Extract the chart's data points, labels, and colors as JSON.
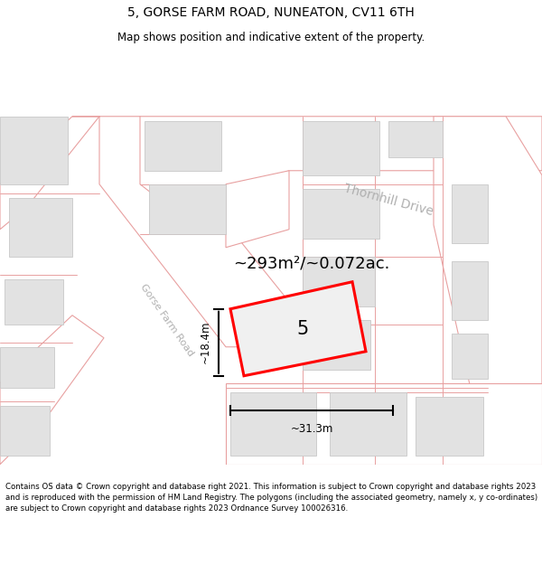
{
  "title": "5, GORSE FARM ROAD, NUNEATON, CV11 6TH",
  "subtitle": "Map shows position and indicative extent of the property.",
  "footer": "Contains OS data © Crown copyright and database right 2021. This information is subject to Crown copyright and database rights 2023 and is reproduced with the permission of HM Land Registry. The polygons (including the associated geometry, namely x, y co-ordinates) are subject to Crown copyright and database rights 2023 Ordnance Survey 100026316.",
  "map_bg": "#f7f7f7",
  "road_fill": "#ffffff",
  "road_stroke": "#e8a0a0",
  "building_fill": "#e2e2e2",
  "building_stroke": "#c8c8c8",
  "highlight_stroke": "#ff0000",
  "highlight_fill": "#f0f0f0",
  "area_label": "~293m²/~0.072ac.",
  "plot_label": "5",
  "dim_width": "~31.3m",
  "dim_height": "~18.4m",
  "road_label_1": "Gorse Farm Road",
  "road_label_2": "Thornhill Drive",
  "title_fontsize": 10,
  "subtitle_fontsize": 8.5,
  "footer_fontsize": 6.2
}
